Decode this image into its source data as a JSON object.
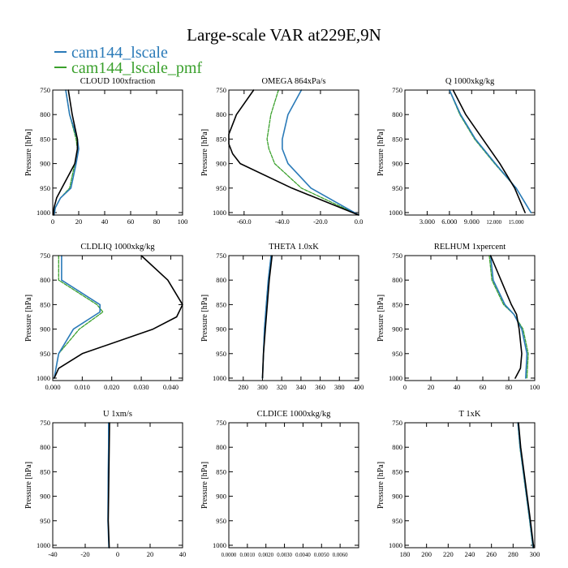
{
  "title": "Large-scale VAR at229E,9N",
  "legend": [
    {
      "name": "cam144_lscale",
      "color": "#2a7ab8"
    },
    {
      "name": "cam144_lscale_pmf",
      "color": "#3aa02c"
    }
  ],
  "colors": {
    "ref": "#000000",
    "s1": "#2a7ab8",
    "s2": "#3aa02c"
  },
  "ylabel": "Pressure [hPa]",
  "yticks": [
    750,
    800,
    850,
    900,
    950,
    1000
  ],
  "chart_data": [
    {
      "type": "line",
      "title": "CLOUD 100xfraction",
      "xlim": [
        0,
        100
      ],
      "xticks": [
        0,
        20,
        40,
        60,
        80,
        100
      ],
      "xticklabels": [
        "0",
        "20",
        "40",
        "60",
        "80",
        "100"
      ],
      "ylim": [
        750,
        1005
      ],
      "series": [
        {
          "name": "reference",
          "p": [
            750,
            800,
            850,
            870,
            900,
            920,
            950,
            970,
            990,
            1005
          ],
          "x": [
            12,
            15,
            19,
            19,
            17,
            13,
            7,
            3,
            1,
            0.5
          ]
        },
        {
          "name": "cam144_lscale",
          "p": [
            750,
            800,
            850,
            870,
            900,
            950,
            970,
            990,
            1005
          ],
          "x": [
            10,
            13,
            19,
            20,
            18,
            14,
            6,
            2,
            1
          ]
        },
        {
          "name": "cam144_lscale_pmf",
          "p": [
            750,
            800,
            850,
            870,
            900,
            950,
            970,
            990,
            1005
          ],
          "x": [
            10,
            13,
            18,
            19,
            17,
            13,
            6,
            2,
            1
          ]
        }
      ]
    },
    {
      "type": "line",
      "title": "OMEGA 864xPa/s",
      "xlim": [
        -68,
        0
      ],
      "xticks": [
        -60,
        -40,
        -20,
        0
      ],
      "xticklabels": [
        "-60.0",
        "-40.0",
        "-20.0",
        "0.0"
      ],
      "ylim": [
        750,
        1005
      ],
      "series": [
        {
          "name": "reference",
          "p": [
            750,
            800,
            840,
            860,
            880,
            900,
            950,
            1005
          ],
          "x": [
            -55,
            -64,
            -68,
            -68,
            -66,
            -62,
            -35,
            0
          ]
        },
        {
          "name": "cam144_lscale",
          "p": [
            750,
            800,
            850,
            870,
            900,
            950,
            1005
          ],
          "x": [
            -30,
            -37,
            -40,
            -40,
            -37,
            -25,
            0
          ]
        },
        {
          "name": "cam144_lscale_pmf",
          "p": [
            750,
            800,
            850,
            870,
            900,
            950,
            1005
          ],
          "x": [
            -42,
            -46,
            -48,
            -47,
            -44,
            -30,
            0
          ]
        }
      ]
    },
    {
      "type": "line",
      "title": "Q 1000xkg/kg",
      "xlim": [
        0,
        17.5
      ],
      "xticks": [
        3,
        6,
        9,
        12,
        15
      ],
      "xticklabels": [
        "3.000",
        "6.000",
        "9.000",
        "12.000",
        "15.000"
      ],
      "ylim": [
        750,
        1005
      ],
      "series": [
        {
          "name": "reference",
          "p": [
            750,
            800,
            850,
            900,
            950,
            1000
          ],
          "x": [
            6.5,
            8.2,
            10.5,
            12.8,
            14.8,
            16.2
          ]
        },
        {
          "name": "cam144_lscale",
          "p": [
            750,
            800,
            850,
            900,
            950,
            1000
          ],
          "x": [
            6.0,
            7.5,
            9.5,
            12.2,
            15.0,
            17.0
          ]
        },
        {
          "name": "cam144_lscale_pmf",
          "p": [
            750,
            800,
            850,
            900,
            950,
            1000
          ],
          "x": [
            6.0,
            7.4,
            9.4,
            12.1,
            15.0,
            17.0
          ]
        }
      ]
    },
    {
      "type": "line",
      "title": "CLDLIQ 1000xkg/kg",
      "xlim": [
        0,
        0.044
      ],
      "xticks": [
        0,
        0.01,
        0.02,
        0.03,
        0.04
      ],
      "xticklabels": [
        "0.000",
        "0.010",
        "0.020",
        "0.030",
        "0.040"
      ],
      "ylim": [
        750,
        1005
      ],
      "series": [
        {
          "name": "reference",
          "p": [
            750,
            800,
            850,
            875,
            900,
            950,
            980,
            1000
          ],
          "x": [
            0.03,
            0.039,
            0.044,
            0.042,
            0.034,
            0.01,
            0.002,
            0.0005
          ]
        },
        {
          "name": "cam144_lscale",
          "p": [
            750,
            800,
            850,
            865,
            900,
            950,
            1000
          ],
          "x": [
            0.003,
            0.003,
            0.016,
            0.016,
            0.007,
            0.002,
            0.0005
          ]
        },
        {
          "name": "cam144_lscale_pmf",
          "p": [
            750,
            800,
            850,
            865,
            900,
            950,
            1000
          ],
          "x": [
            0.002,
            0.002,
            0.015,
            0.017,
            0.009,
            0.002,
            0.0005
          ]
        }
      ]
    },
    {
      "type": "line",
      "title": "THETA 1.0xK",
      "xlim": [
        265,
        400
      ],
      "xticks": [
        280,
        300,
        320,
        340,
        360,
        380,
        400
      ],
      "xticklabels": [
        "280",
        "300",
        "320",
        "340",
        "360",
        "380",
        "400"
      ],
      "ylim": [
        750,
        1005
      ],
      "series": [
        {
          "name": "reference",
          "p": [
            750,
            800,
            850,
            900,
            950,
            1000
          ],
          "x": [
            310,
            307,
            305,
            303,
            301,
            300
          ]
        },
        {
          "name": "cam144_lscale",
          "p": [
            750,
            800,
            850,
            900,
            950,
            1000
          ],
          "x": [
            309,
            306,
            304,
            302,
            301,
            300
          ]
        },
        {
          "name": "cam144_lscale_pmf",
          "p": [
            750,
            800,
            850,
            900,
            950,
            1000
          ],
          "x": [
            309,
            306,
            304,
            302,
            301,
            300
          ]
        }
      ]
    },
    {
      "type": "line",
      "title": "RELHUM 1xpercent",
      "xlim": [
        0,
        100
      ],
      "xticks": [
        0,
        20,
        40,
        60,
        80,
        100
      ],
      "xticklabels": [
        "0",
        "20",
        "40",
        "60",
        "80",
        "100"
      ],
      "ylim": [
        750,
        1005
      ],
      "series": [
        {
          "name": "reference",
          "p": [
            750,
            800,
            850,
            870,
            900,
            950,
            980,
            1000
          ],
          "x": [
            66,
            74,
            82,
            86,
            88,
            90,
            89,
            85
          ]
        },
        {
          "name": "cam144_lscale",
          "p": [
            750,
            800,
            850,
            870,
            900,
            950,
            1000
          ],
          "x": [
            66,
            68,
            77,
            84,
            90,
            94,
            93
          ]
        },
        {
          "name": "cam144_lscale_pmf",
          "p": [
            750,
            800,
            850,
            870,
            900,
            950,
            1000
          ],
          "x": [
            65,
            67,
            76,
            84,
            91,
            95,
            94
          ]
        }
      ]
    },
    {
      "type": "line",
      "title": "U 1xm/s",
      "xlim": [
        -40,
        40
      ],
      "xticks": [
        -40,
        -20,
        0,
        20,
        40
      ],
      "xticklabels": [
        "-40",
        "-20",
        "0",
        "20",
        "40"
      ],
      "ylim": [
        750,
        1005
      ],
      "series": [
        {
          "name": "reference",
          "p": [
            750,
            800,
            850,
            900,
            950,
            1005
          ],
          "x": [
            -5,
            -5.2,
            -5.4,
            -5.6,
            -5.8,
            -5.2
          ]
        },
        {
          "name": "cam144_lscale",
          "p": [
            750,
            800,
            850,
            900,
            950,
            1005
          ],
          "x": [
            -5.6,
            -5.6,
            -5.8,
            -5.9,
            -6.0,
            -5.4
          ]
        },
        {
          "name": "cam144_lscale_pmf",
          "p": [
            750,
            800,
            850,
            900,
            950,
            1005
          ],
          "x": [
            -5.4,
            -5.5,
            -5.7,
            -5.8,
            -5.9,
            -5.3
          ]
        }
      ]
    },
    {
      "type": "line",
      "title": "CLDICE 1000xkg/kg",
      "xlim": [
        0,
        0.007
      ],
      "xticks": [
        0,
        0.001,
        0.002,
        0.003,
        0.004,
        0.005,
        0.006
      ],
      "xticklabels": [
        "0.0000",
        "0.0010",
        "0.0020",
        "0.0030",
        "0.0040",
        "0.0050",
        "0.0060"
      ],
      "ylim": [
        750,
        1005
      ],
      "series": []
    },
    {
      "type": "line",
      "title": "T 1xK",
      "xlim": [
        180,
        300
      ],
      "xticks": [
        180,
        200,
        220,
        240,
        260,
        280,
        300
      ],
      "xticklabels": [
        "180",
        "200",
        "220",
        "240",
        "260",
        "280",
        "300"
      ],
      "ylim": [
        750,
        1005
      ],
      "series": [
        {
          "name": "reference",
          "p": [
            750,
            800,
            850,
            900,
            950,
            1005
          ],
          "x": [
            285,
            287,
            290,
            293,
            296,
            299
          ]
        },
        {
          "name": "cam144_lscale",
          "p": [
            750,
            800,
            850,
            900,
            950,
            1005
          ],
          "x": [
            284.5,
            286.5,
            289.5,
            292.5,
            295.5,
            298.5
          ]
        },
        {
          "name": "cam144_lscale_pmf",
          "p": [
            750,
            800,
            850,
            900,
            950,
            1005
          ],
          "x": [
            284.3,
            286.3,
            289.3,
            292.3,
            295.3,
            298.3
          ]
        }
      ]
    }
  ]
}
